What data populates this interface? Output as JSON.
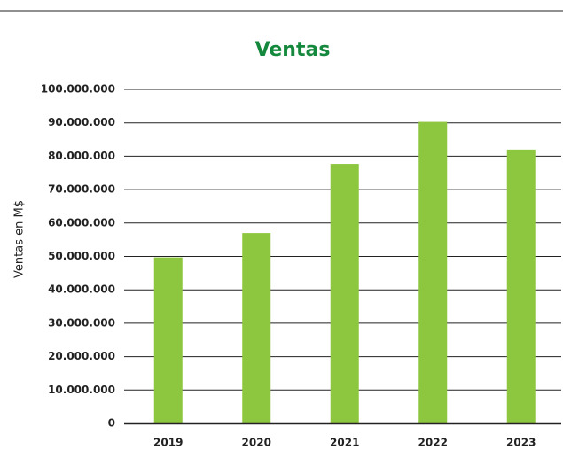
{
  "chart_data": {
    "type": "bar",
    "title": "Ventas",
    "y_label": "Ventas en M$",
    "categories": [
      "2019",
      "2020",
      "2021",
      "2022",
      "2023"
    ],
    "values": [
      49700000,
      57000000,
      77700000,
      90300000,
      82000000
    ],
    "color": "#8dc63f",
    "title_color": "#14883c",
    "ylim": [
      0,
      100000000
    ],
    "yticks": [
      0,
      {
        "value": 10000000,
        "label": "10.000.000"
      },
      {
        "value": 20000000,
        "label": "20.000.000"
      },
      {
        "value": 30000000,
        "label": "30.000.000"
      },
      {
        "value": 40000000,
        "label": "40.000.000"
      },
      {
        "value": 50000000,
        "label": "50.000.000"
      },
      {
        "value": 60000000,
        "label": "60.000.000"
      },
      {
        "value": 70000000,
        "label": "70.000.000"
      },
      {
        "value": 80000000,
        "label": "80.000.000"
      },
      {
        "value": 90000000,
        "label": "90.000.000"
      },
      {
        "value": 100000000,
        "label": "100.000.000"
      }
    ],
    "grid": true
  }
}
